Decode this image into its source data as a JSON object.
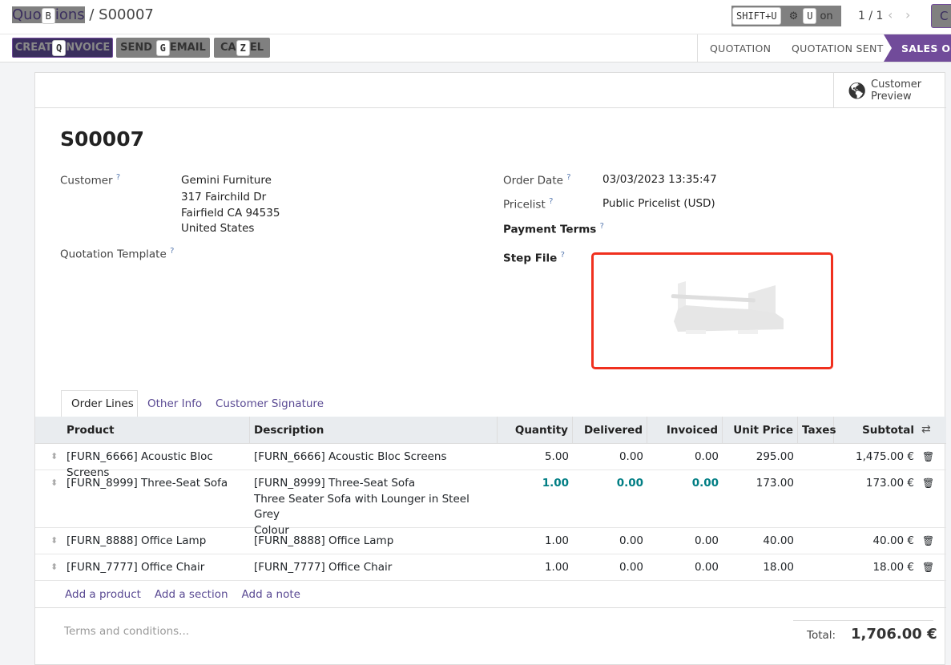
{
  "breadcrumb": {
    "parent": "Quotations",
    "parent_visible_start": "Quo",
    "parent_visible_end": "ions",
    "parent_key": "B",
    "current": "S00007"
  },
  "toolbar": {
    "shift_key": "SHIFT+U",
    "action_label": "Action",
    "action_key": "U",
    "pager": "1 / 1",
    "create_label": "C"
  },
  "buttons": [
    {
      "label_a": "CREAT",
      "key": "Q",
      "label_b": "NVOICE",
      "full": "Create Invoice"
    },
    {
      "label_a": "SEND",
      "key": "G",
      "label_b": "EMAIL",
      "full": "Send by Email"
    },
    {
      "label_a": "CA",
      "key": "Z",
      "label_b": "EL",
      "full": "Cancel"
    }
  ],
  "stages": [
    "QUOTATION",
    "QUOTATION SENT",
    "SALES ORDER"
  ],
  "active_stage": "SALES ORDER",
  "customer_preview": "Customer Preview",
  "title": "S00007",
  "fields": {
    "customer_label": "Customer",
    "customer_name": "Gemini Furniture",
    "address": [
      "317 Fairchild Dr",
      "Fairfield CA 94535",
      "United States"
    ],
    "template_label": "Quotation Template",
    "order_date_label": "Order Date",
    "order_date": "03/03/2023 13:35:47",
    "pricelist_label": "Pricelist",
    "pricelist": "Public Pricelist (USD)",
    "payment_terms_label": "Payment Terms",
    "step_file_label": "Step File",
    "help": "?"
  },
  "tabs": [
    "Order Lines",
    "Other Info",
    "Customer Signature"
  ],
  "columns": [
    "Product",
    "Description",
    "Quantity",
    "Delivered",
    "Invoiced",
    "Unit Price",
    "Taxes",
    "Subtotal"
  ],
  "lines": [
    {
      "product": "[FURN_6666] Acoustic Bloc Screens",
      "description": [
        "[FURN_6666] Acoustic Bloc Screens"
      ],
      "quantity": "5.00",
      "delivered": "0.00",
      "invoiced": "0.00",
      "unit_price": "295.00",
      "taxes": "",
      "subtotal": "1,475.00 €"
    },
    {
      "product": "[FURN_8999] Three-Seat Sofa",
      "description": [
        "[FURN_8999] Three-Seat Sofa",
        "Three Seater Sofa with Lounger in Steel Grey",
        "Colour"
      ],
      "quantity": "1.00",
      "delivered": "0.00",
      "invoiced": "0.00",
      "unit_price": "173.00",
      "taxes": "",
      "subtotal": "173.00 €"
    },
    {
      "product": "[FURN_8888] Office Lamp",
      "description": [
        "[FURN_8888] Office Lamp"
      ],
      "quantity": "1.00",
      "delivered": "0.00",
      "invoiced": "0.00",
      "unit_price": "40.00",
      "taxes": "",
      "subtotal": "40.00 €"
    },
    {
      "product": "[FURN_7777] Office Chair",
      "description": [
        "[FURN_7777] Office Chair"
      ],
      "quantity": "1.00",
      "delivered": "0.00",
      "invoiced": "0.00",
      "unit_price": "18.00",
      "taxes": "",
      "subtotal": "18.00 €"
    }
  ],
  "add_links": [
    "Add a product",
    "Add a section",
    "Add a note"
  ],
  "terms_placeholder": "Terms and conditions...",
  "total_label": "Total:",
  "total": "1,706.00 €",
  "colors": {
    "accent": "#714b9a",
    "primary_dark": "#3a2e5e",
    "highlight_border": "#f0301e",
    "teal": "#017e84"
  }
}
